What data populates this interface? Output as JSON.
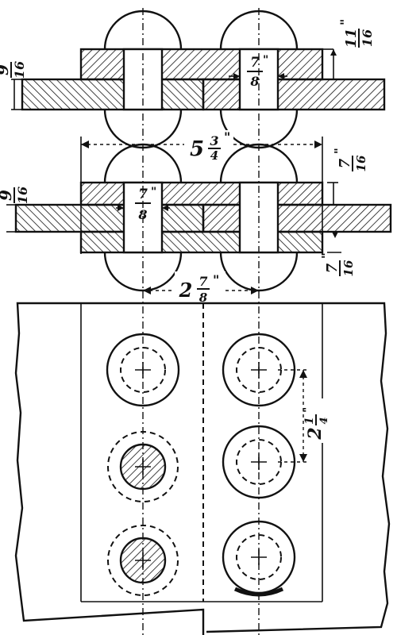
{
  "figure": {
    "dimensions": {
      "top_left_thickness": {
        "num": "9",
        "den": "16",
        "mark": "\""
      },
      "top_right_thickness": {
        "num": "11",
        "den": "16",
        "mark": "\""
      },
      "top_rivet_diameter": {
        "num": "7",
        "den": "8",
        "mark": "\""
      },
      "overall_width": {
        "whole": "5",
        "num": "3",
        "den": "4",
        "mark": "\""
      },
      "mid_left_thickness": {
        "num": "9",
        "den": "16",
        "mark": "\""
      },
      "mid_right_upper": {
        "num": "7",
        "den": "16",
        "mark": "\""
      },
      "mid_rivet_diameter": {
        "num": "7",
        "den": "8",
        "mark": "\""
      },
      "mid_right_lower": {
        "num": "7",
        "den": "16",
        "mark": "\""
      },
      "rivet_spacing_horizontal": {
        "whole": "2",
        "num": "7",
        "den": "8",
        "mark": "\""
      },
      "rivet_pitch_vertical": {
        "whole": "2",
        "num": "1",
        "den": "4",
        "mark": "\""
      }
    }
  }
}
